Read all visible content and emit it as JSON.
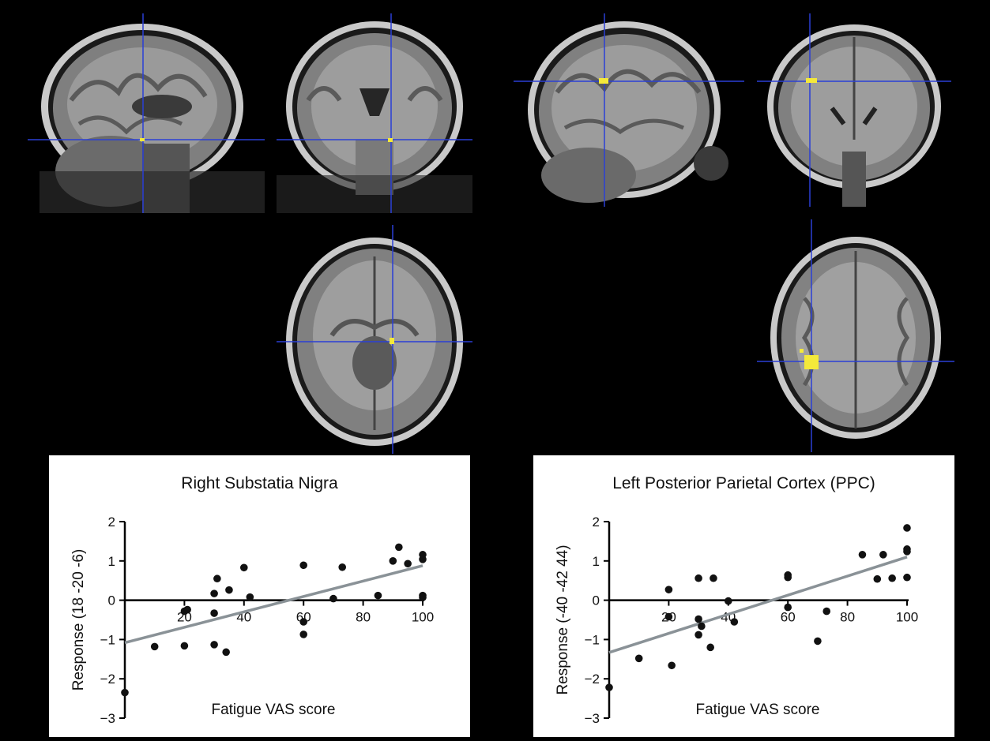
{
  "figure": {
    "brain_views": [
      {
        "id": "sn-sagittal",
        "view": "sagittal"
      },
      {
        "id": "sn-coronal",
        "view": "coronal"
      },
      {
        "id": "sn-axial",
        "view": "axial"
      },
      {
        "id": "ppc-sagittal",
        "view": "sagittal"
      },
      {
        "id": "ppc-coronal",
        "view": "coronal"
      },
      {
        "id": "ppc-axial",
        "view": "axial"
      }
    ],
    "colors": {
      "crosshair": "#2a3fd6",
      "activation": "#f4e93a",
      "fit_line": "#8a9297",
      "points": "#111111"
    }
  },
  "chart_data": [
    {
      "type": "scatter",
      "title": "Right Substatia Nigra",
      "xlabel": "Fatigue VAS score",
      "ylabel": "Response (18 -20 -6)",
      "xlim": [
        0,
        100
      ],
      "ylim": [
        -3,
        2
      ],
      "xticks": [
        20,
        40,
        60,
        80,
        100
      ],
      "yticks": [
        -3,
        -2,
        -1,
        0,
        1,
        2
      ],
      "xtick_labels": [
        "20",
        "40",
        "60",
        "80",
        "100"
      ],
      "ytick_labels": [
        "−3",
        "−2",
        "−1",
        "0",
        "1",
        "2"
      ],
      "points": [
        [
          0,
          -2.35
        ],
        [
          10,
          -1.18
        ],
        [
          20,
          -1.16
        ],
        [
          20,
          -0.28
        ],
        [
          21,
          -0.24
        ],
        [
          30,
          0.17
        ],
        [
          30,
          -0.33
        ],
        [
          30,
          -1.13
        ],
        [
          31,
          0.55
        ],
        [
          34,
          -1.32
        ],
        [
          35,
          0.26
        ],
        [
          40,
          0.83
        ],
        [
          42,
          0.08
        ],
        [
          60,
          0.89
        ],
        [
          60,
          -0.55
        ],
        [
          60,
          -0.87
        ],
        [
          70,
          0.04
        ],
        [
          73,
          0.84
        ],
        [
          85,
          0.12
        ],
        [
          90,
          1.0
        ],
        [
          92,
          1.35
        ],
        [
          95,
          0.93
        ],
        [
          100,
          1.16
        ],
        [
          100,
          1.04
        ],
        [
          100,
          0.12
        ],
        [
          100,
          0.07
        ]
      ],
      "fit_line": [
        [
          0,
          -1.08
        ],
        [
          100,
          0.88
        ]
      ]
    },
    {
      "type": "scatter",
      "title": "Left Posterior Parietal Cortex (PPC)",
      "xlabel": "Fatigue VAS score",
      "ylabel": "Response (-40 -42 44)",
      "xlim": [
        0,
        100
      ],
      "ylim": [
        -3,
        2
      ],
      "xticks": [
        20,
        40,
        60,
        80,
        100
      ],
      "yticks": [
        -3,
        -2,
        -1,
        0,
        1,
        2
      ],
      "xtick_labels": [
        "20",
        "40",
        "60",
        "80",
        "100"
      ],
      "ytick_labels": [
        "−3",
        "−2",
        "−1",
        "0",
        "1",
        "2"
      ],
      "points": [
        [
          0,
          -2.22
        ],
        [
          10,
          -1.48
        ],
        [
          20,
          0.27
        ],
        [
          20,
          -0.42
        ],
        [
          21,
          -1.66
        ],
        [
          30,
          0.56
        ],
        [
          30,
          -0.48
        ],
        [
          30,
          -0.88
        ],
        [
          31,
          -0.66
        ],
        [
          34,
          -1.2
        ],
        [
          35,
          0.56
        ],
        [
          40,
          -0.02
        ],
        [
          42,
          -0.55
        ],
        [
          60,
          0.64
        ],
        [
          60,
          0.58
        ],
        [
          60,
          -0.18
        ],
        [
          70,
          -1.04
        ],
        [
          73,
          -0.28
        ],
        [
          85,
          1.16
        ],
        [
          90,
          0.54
        ],
        [
          92,
          1.16
        ],
        [
          95,
          0.56
        ],
        [
          100,
          1.84
        ],
        [
          100,
          1.3
        ],
        [
          100,
          1.24
        ],
        [
          100,
          0.58
        ]
      ],
      "fit_line": [
        [
          0,
          -1.33
        ],
        [
          100,
          1.1
        ]
      ]
    }
  ]
}
